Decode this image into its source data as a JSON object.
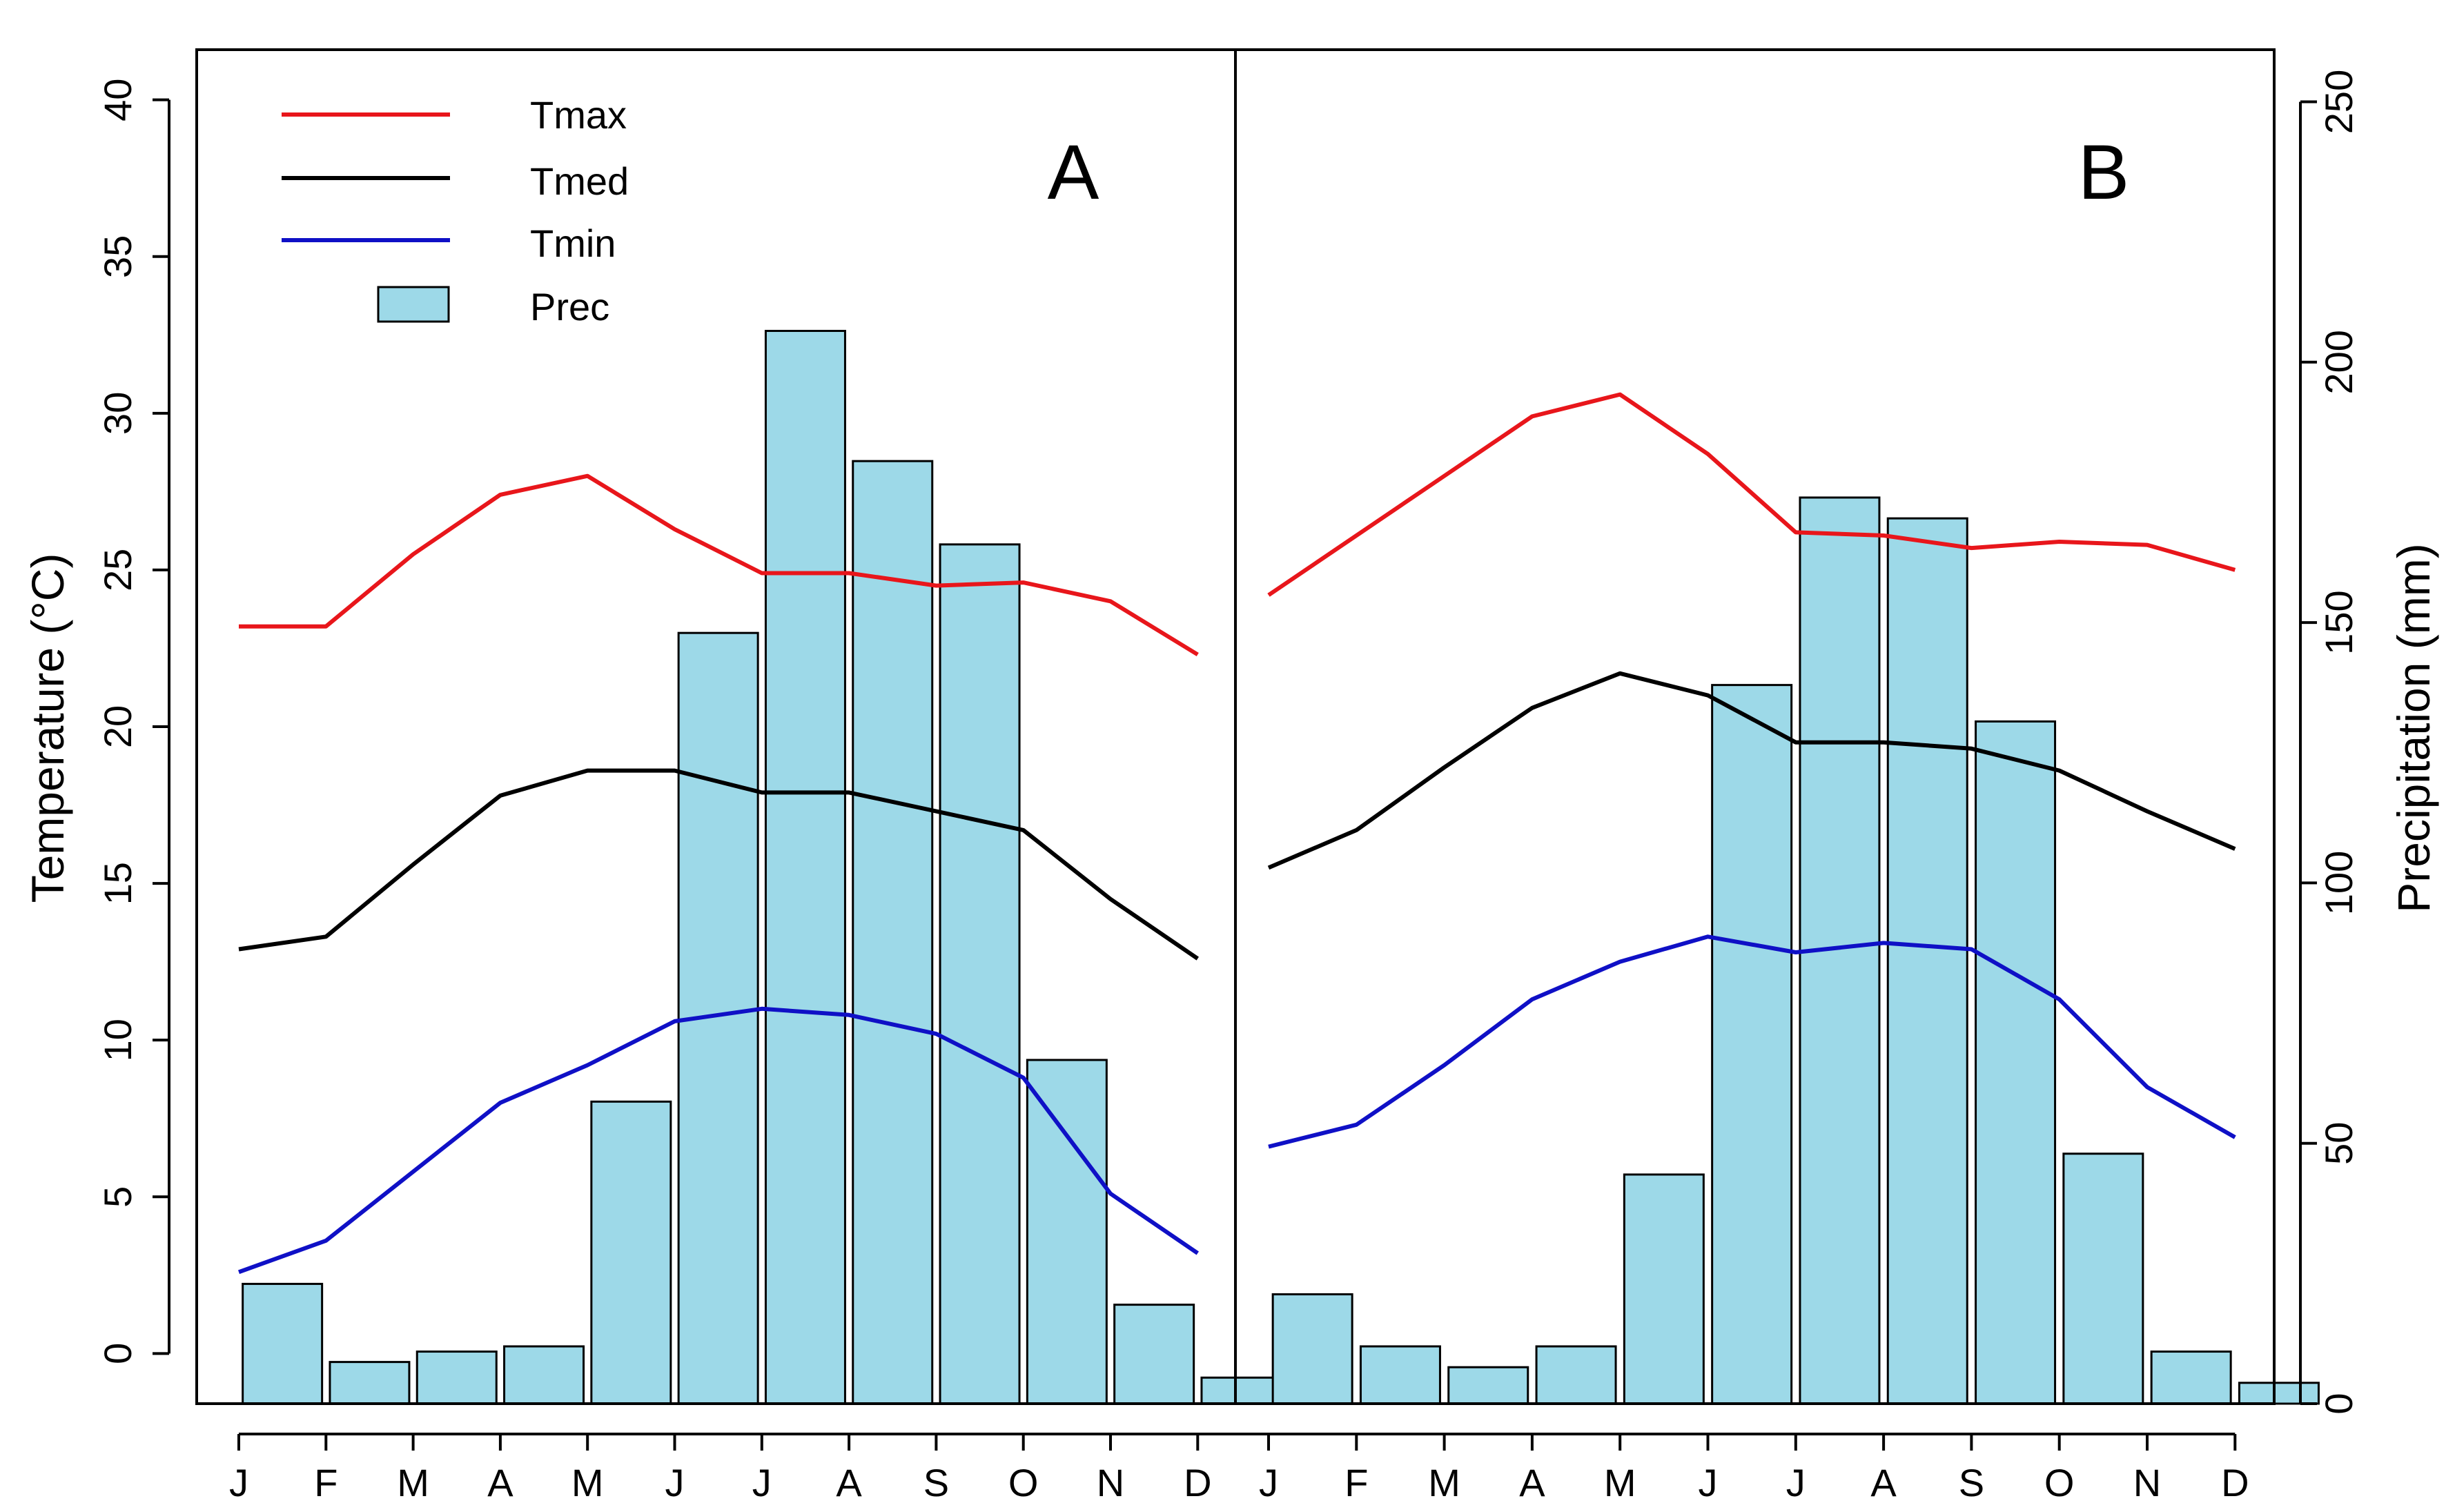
{
  "chart_data": {
    "type": "bar+line",
    "title": "",
    "ylabel_left": "Temperature (°C)",
    "ylabel_right": "Precipitation (mm)",
    "ylim_left": [
      -1.6,
      41.6
    ],
    "yticks_left": [
      0,
      5,
      10,
      15,
      20,
      25,
      30,
      35,
      40
    ],
    "ylim_right": [
      0,
      260
    ],
    "yticks_right": [
      0,
      50,
      100,
      150,
      200,
      250
    ],
    "months": [
      "J",
      "F",
      "M",
      "A",
      "M",
      "J",
      "J",
      "A",
      "S",
      "O",
      "N",
      "D"
    ],
    "legend": {
      "position": "top-left",
      "entries": [
        {
          "key": "tmax",
          "label": "Tmax",
          "color": "#e8161b",
          "kind": "line"
        },
        {
          "key": "tmed",
          "label": "Tmed",
          "color": "#000000",
          "kind": "line"
        },
        {
          "key": "tmin",
          "label": "Tmin",
          "color": "#0f10c6",
          "kind": "line"
        },
        {
          "key": "prec",
          "label": "Prec",
          "color": "#9dd9e8",
          "kind": "bar"
        }
      ]
    },
    "bar_color": "#9dd9e8",
    "panels": [
      {
        "label": "A",
        "tmax": [
          23.2,
          23.2,
          25.5,
          27.4,
          28.0,
          26.3,
          24.9,
          24.9,
          24.5,
          24.6,
          24.0,
          22.3
        ],
        "tmed": [
          12.9,
          13.3,
          15.6,
          17.8,
          18.6,
          18.6,
          17.9,
          17.9,
          17.3,
          16.7,
          14.5,
          12.6
        ],
        "tmin": [
          2.6,
          3.6,
          5.8,
          8.0,
          9.2,
          10.6,
          11.0,
          10.8,
          10.2,
          8.8,
          5.1,
          3.2
        ],
        "prec": [
          23,
          8,
          10,
          11,
          58,
          148,
          206,
          181,
          165,
          66,
          19,
          5
        ]
      },
      {
        "label": "B",
        "tmax": [
          24.2,
          26.1,
          28.0,
          29.9,
          30.6,
          28.7,
          26.2,
          26.1,
          25.7,
          25.9,
          25.8,
          25.0
        ],
        "tmed": [
          15.5,
          16.7,
          18.7,
          20.6,
          21.7,
          21.0,
          19.5,
          19.5,
          19.3,
          18.6,
          17.3,
          16.1
        ],
        "tmin": [
          6.6,
          7.3,
          9.2,
          11.3,
          12.5,
          13.3,
          12.8,
          13.1,
          12.9,
          11.3,
          8.5,
          6.9
        ],
        "prec": [
          21,
          11,
          7,
          11,
          44,
          138,
          174,
          170,
          131,
          48,
          10,
          4
        ]
      }
    ]
  }
}
